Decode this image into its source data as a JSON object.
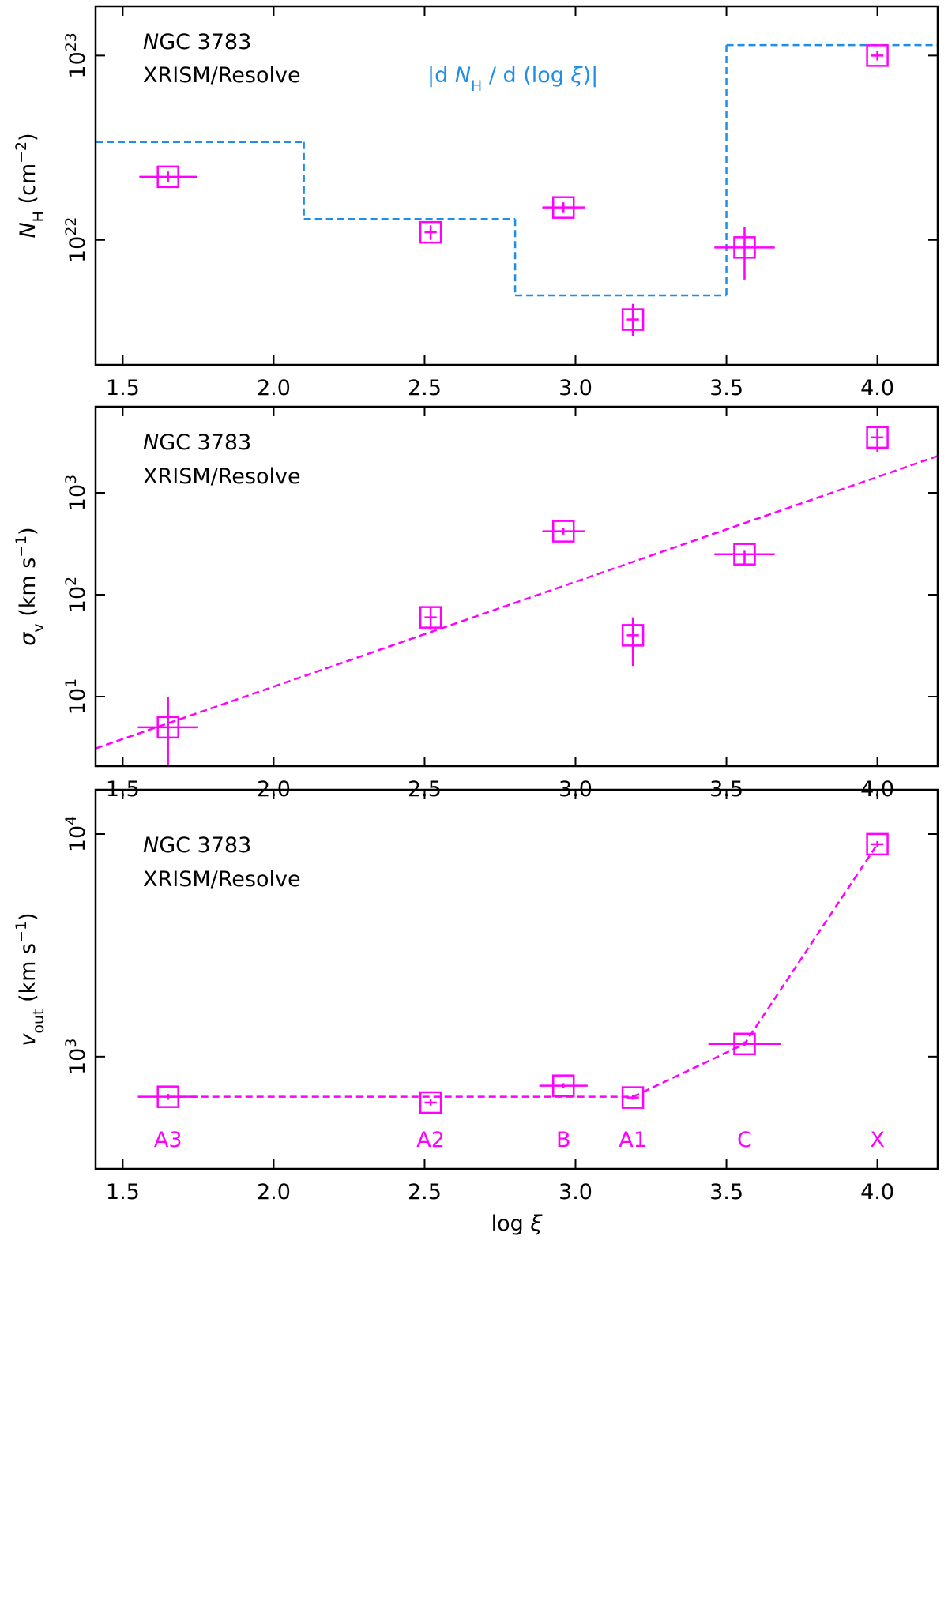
{
  "chart_data": [
    {
      "type": "scatter",
      "xscale": "linear",
      "yscale": "log",
      "color": "#ff00ff",
      "annotations": [
        "NGC 3783",
        "XRISM/Resolve"
      ],
      "ylabel": "N_{H} (cm^{−2})",
      "x": [
        1.65,
        2.52,
        2.96,
        3.19,
        3.56,
        4.0
      ],
      "values": [
        2.2e+22,
        1.1e+22,
        1.5e+22,
        3.7e+21,
        9.1e+21,
        1e+23
      ],
      "xerr": [
        0.095,
        0.02,
        0.07,
        0.02,
        0.1,
        0.02
      ],
      "yerr": [
        [
          1.5e+21,
          1.5e+21
        ],
        [
          1e+21,
          1e+21
        ],
        [
          1e+21,
          1e+21
        ],
        [
          7e+20,
          8e+20
        ],
        [
          3e+21,
          2.6e+21
        ],
        [
          6e+21,
          6e+21
        ]
      ],
      "step": {
        "label": "|d N_{H} / d (log ξ)|",
        "color": "#1e8ee6",
        "edges": [
          1.41,
          2.1,
          2.8,
          3.5,
          4.2
        ],
        "values": [
          3.4e+22,
          1.3e+22,
          5e+21,
          1.14e+23
        ]
      },
      "xlim": [
        1.41,
        4.2
      ],
      "ylim": [
        2.1e+21,
        1.85e+23
      ],
      "xticks": [
        1.5,
        {
          "value": 2,
          "label": "2.0"
        },
        2.5,
        {
          "value": 3,
          "label": "3.0"
        },
        3.5,
        {
          "value": 4,
          "label": "4.0"
        }
      ],
      "yticks": [
        {
          "value": 1e+22,
          "label": "10^{22}"
        },
        {
          "value": 1e+23,
          "label": "10^{23}"
        }
      ]
    },
    {
      "type": "scatter",
      "xscale": "linear",
      "yscale": "log",
      "color": "#ff00ff",
      "annotations": [
        "NGC 3783",
        "XRISM/Resolve"
      ],
      "ylabel": "σ_{v} (km s^{−1})",
      "x": [
        1.65,
        2.52,
        2.96,
        3.19,
        3.56,
        4.0
      ],
      "values": [
        5,
        60,
        420,
        40,
        250,
        3500
      ],
      "xerr": [
        0.1,
        0.02,
        0.07,
        0.02,
        0.1,
        0.02
      ],
      "yerr": [
        [
          4.5,
          5
        ],
        [
          15,
          15
        ],
        [
          30,
          30
        ],
        [
          20,
          20
        ],
        [
          55,
          20
        ],
        [
          970,
          800
        ]
      ],
      "fit": {
        "color": "#ff00ff",
        "x": [
          1.41,
          4.2
        ],
        "values": [
          3.1,
          2300
        ]
      },
      "xlim": [
        1.41,
        4.2
      ],
      "ylim": [
        2.08,
        7000
      ],
      "xticks": [
        1.5,
        {
          "value": 2,
          "label": "2.0"
        },
        2.5,
        {
          "value": 3,
          "label": "3.0"
        },
        3.5,
        {
          "value": 4,
          "label": "4.0"
        }
      ],
      "yticks": [
        {
          "value": 10,
          "label": "10^{1}"
        },
        {
          "value": 100,
          "label": "10^{2}"
        },
        {
          "value": 1000,
          "label": "10^{3}"
        }
      ]
    },
    {
      "type": "scatter",
      "xscale": "linear",
      "yscale": "log",
      "color": "#ff00ff",
      "annotations": [
        "NGC 3783",
        "XRISM/Resolve"
      ],
      "xlabel": "log ξ",
      "ylabel": "v_{out} (km s^{−1})",
      "x": [
        1.65,
        2.52,
        2.96,
        3.19,
        3.56,
        4.0
      ],
      "values": [
        660,
        622,
        740,
        655,
        1140,
        9000
      ],
      "xerr": [
        0.1,
        0.02,
        0.08,
        0.02,
        0.12,
        0.02
      ],
      "yerr": [
        [
          20,
          20
        ],
        [
          20,
          20
        ],
        [
          20,
          20
        ],
        [
          15,
          15
        ],
        [
          30,
          30
        ],
        [
          300,
          300
        ]
      ],
      "point_labels": [
        "A3",
        "A2",
        "B",
        "A1",
        "C",
        "X"
      ],
      "fit": {
        "color": "#ff00ff",
        "x": [
          1.65,
          3.19,
          3.56,
          4.0
        ],
        "values": [
          660,
          660,
          1140,
          9000
        ]
      },
      "xlim": [
        1.41,
        4.2
      ],
      "ylim": [
        313,
        15800
      ],
      "xticks": [
        1.5,
        {
          "value": 2,
          "label": "2.0"
        },
        2.5,
        {
          "value": 3,
          "label": "3.0"
        },
        3.5,
        {
          "value": 4,
          "label": "4.0"
        }
      ],
      "yticks": [
        {
          "value": 1000,
          "label": "10^{3}"
        },
        {
          "value": 10000,
          "label": "10^{4}"
        }
      ]
    }
  ]
}
